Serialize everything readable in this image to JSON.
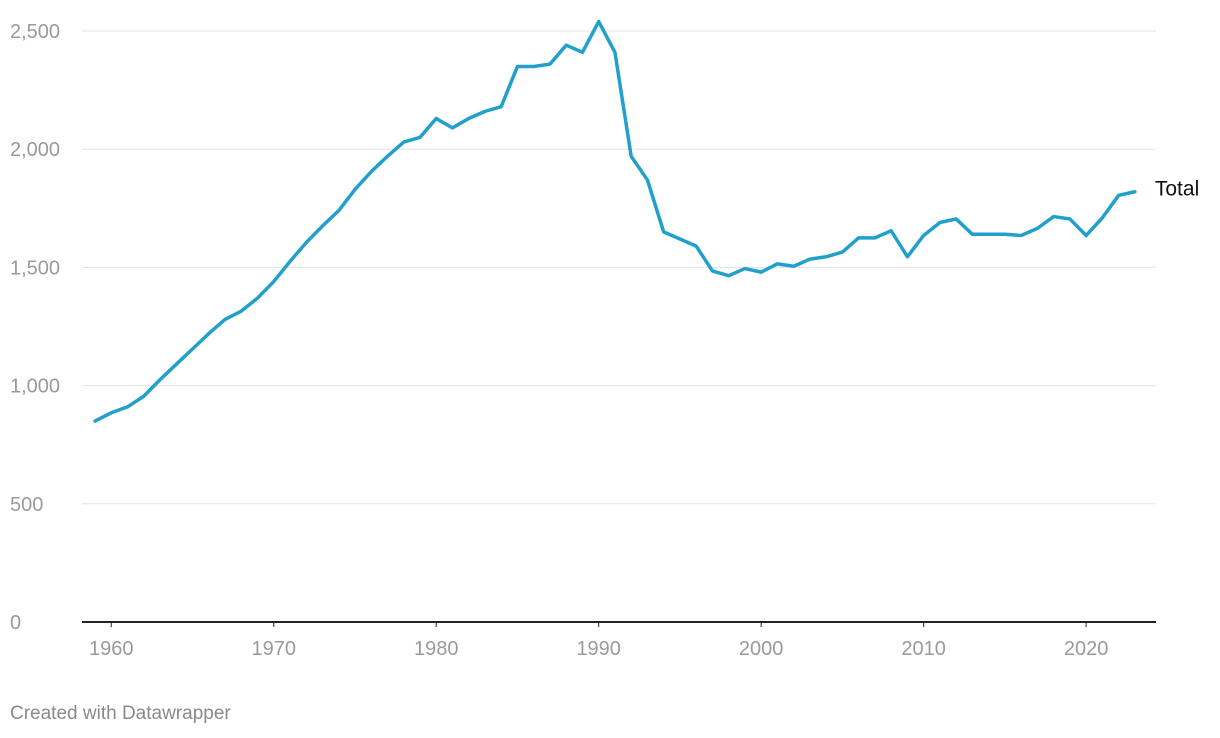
{
  "chart_data": {
    "type": "line",
    "title": "",
    "xlabel": "",
    "ylabel": "",
    "xlim": [
      1958.2,
      2024.3
    ],
    "ylim": [
      0,
      2500
    ],
    "y_ticks": [
      0,
      500,
      1000,
      1500,
      2000,
      2500
    ],
    "y_tick_labels": [
      "0",
      "500",
      "1,000",
      "1,500",
      "2,000",
      "2,500"
    ],
    "x_ticks": [
      1960,
      1970,
      1980,
      1990,
      2000,
      2010,
      2020
    ],
    "x_tick_labels": [
      "1960",
      "1970",
      "1980",
      "1990",
      "2000",
      "2010",
      "2020"
    ],
    "grid": true,
    "series": [
      {
        "name": "Total",
        "color": "#21a0cc",
        "points": [
          [
            1959,
            850
          ],
          [
            1960,
            885
          ],
          [
            1961,
            910
          ],
          [
            1962,
            955
          ],
          [
            1963,
            1025
          ],
          [
            1964,
            1090
          ],
          [
            1965,
            1155
          ],
          [
            1966,
            1220
          ],
          [
            1967,
            1280
          ],
          [
            1968,
            1315
          ],
          [
            1969,
            1370
          ],
          [
            1970,
            1440
          ],
          [
            1971,
            1525
          ],
          [
            1972,
            1605
          ],
          [
            1973,
            1675
          ],
          [
            1974,
            1740
          ],
          [
            1975,
            1830
          ],
          [
            1976,
            1905
          ],
          [
            1977,
            1970
          ],
          [
            1978,
            2030
          ],
          [
            1979,
            2050
          ],
          [
            1980,
            2130
          ],
          [
            1981,
            2090
          ],
          [
            1982,
            2130
          ],
          [
            1983,
            2160
          ],
          [
            1984,
            2180
          ],
          [
            1985,
            2350
          ],
          [
            1986,
            2350
          ],
          [
            1987,
            2360
          ],
          [
            1988,
            2440
          ],
          [
            1989,
            2410
          ],
          [
            1990,
            2540
          ],
          [
            1991,
            2410
          ],
          [
            1992,
            1970
          ],
          [
            1993,
            1870
          ],
          [
            1994,
            1650
          ],
          [
            1995,
            1620
          ],
          [
            1996,
            1590
          ],
          [
            1997,
            1485
          ],
          [
            1998,
            1465
          ],
          [
            1999,
            1495
          ],
          [
            2000,
            1480
          ],
          [
            2001,
            1515
          ],
          [
            2002,
            1505
          ],
          [
            2003,
            1535
          ],
          [
            2004,
            1545
          ],
          [
            2005,
            1565
          ],
          [
            2006,
            1625
          ],
          [
            2007,
            1625
          ],
          [
            2008,
            1655
          ],
          [
            2009,
            1545
          ],
          [
            2010,
            1635
          ],
          [
            2011,
            1690
          ],
          [
            2012,
            1705
          ],
          [
            2013,
            1640
          ],
          [
            2014,
            1640
          ],
          [
            2015,
            1640
          ],
          [
            2016,
            1635
          ],
          [
            2017,
            1665
          ],
          [
            2018,
            1715
          ],
          [
            2019,
            1705
          ],
          [
            2020,
            1635
          ],
          [
            2021,
            1710
          ],
          [
            2022,
            1805
          ],
          [
            2023,
            1820
          ]
        ]
      }
    ]
  },
  "footer": {
    "credit": "Created with Datawrapper"
  },
  "colors": {
    "line": "#21a0cc",
    "grid": "#e3e3e3",
    "axis": "#222222",
    "tick_text": "#9a9a9a",
    "label_text": "#111111",
    "footer_text": "#8a8a8a"
  }
}
